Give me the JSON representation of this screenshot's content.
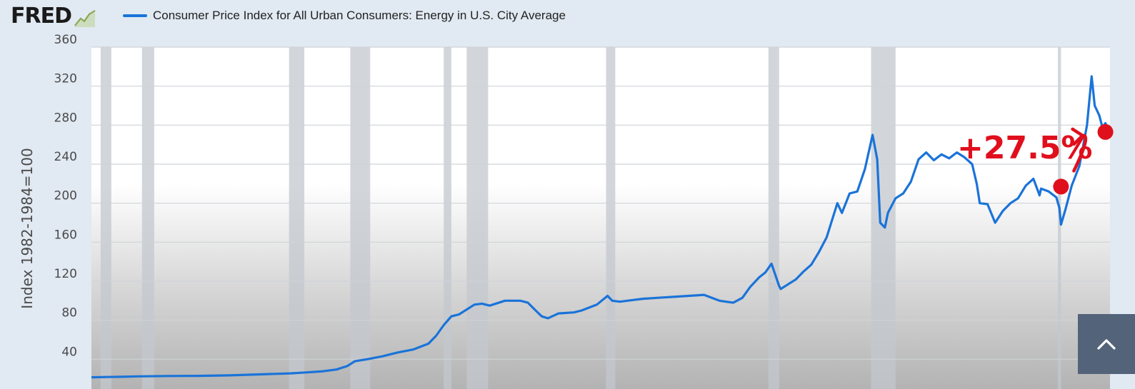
{
  "header": {
    "logo_text": "FRED",
    "legend_label": "Consumer Price Index for All Urban Consumers: Energy in U.S. City Average",
    "line_color": "#1a73d9"
  },
  "annotation": {
    "label": "+27.5%",
    "color": "#e00f1c",
    "start": {
      "x": 2020.3,
      "y": 217
    },
    "end": {
      "x": 2023.2,
      "y": 273
    }
  },
  "scroll_button": {
    "icon": "chevron-up-icon",
    "color": "#53637a"
  },
  "chart_data": {
    "type": "line",
    "ylabel": "Index 1982-1984=100",
    "ylim": [
      0,
      360
    ],
    "y_ticks": [
      40,
      80,
      120,
      160,
      200,
      240,
      280,
      320,
      360
    ],
    "xlim": [
      1957,
      2023.5
    ],
    "grid": true,
    "recessions": [
      [
        1957.6,
        1958.3
      ],
      [
        1960.3,
        1961.1
      ],
      [
        1969.9,
        1970.9
      ],
      [
        1973.9,
        1975.2
      ],
      [
        1980.0,
        1980.5
      ],
      [
        1981.5,
        1982.9
      ],
      [
        1990.6,
        1991.2
      ],
      [
        2001.2,
        2001.9
      ],
      [
        2007.9,
        2009.5
      ],
      [
        2020.1,
        2020.3
      ]
    ],
    "series": [
      {
        "name": "Consumer Price Index for All Urban Consumers: Energy in U.S. City Average",
        "x": [
          1957,
          1958,
          1959,
          1960,
          1962,
          1964,
          1966,
          1968,
          1970,
          1971,
          1972,
          1973,
          1973.7,
          1974.2,
          1975,
          1976,
          1977,
          1978,
          1979,
          1979.5,
          1980,
          1980.5,
          1981,
          1981.6,
          1982,
          1982.5,
          1983,
          1984,
          1985,
          1985.5,
          1986,
          1986.4,
          1986.8,
          1987.5,
          1988.5,
          1989,
          1990,
          1990.7,
          1991,
          1991.5,
          1992,
          1993,
          1994,
          1995,
          1996,
          1997,
          1998,
          1998.9,
          1999.5,
          2000,
          2000.6,
          2001,
          2001.4,
          2001.9,
          2002,
          2003,
          2003.5,
          2004,
          2004.5,
          2005,
          2005.7,
          2006,
          2006.5,
          2007,
          2007.5,
          2008,
          2008.3,
          2008.5,
          2008.8,
          2009,
          2009.5,
          2010,
          2010.5,
          2011,
          2011.5,
          2012,
          2012.5,
          2013,
          2013.5,
          2014,
          2014.5,
          2014.8,
          2015,
          2015.5,
          2016,
          2016.5,
          2017,
          2017.5,
          2018,
          2018.5,
          2018.9,
          2019,
          2019.5,
          2020,
          2020.2,
          2020.3,
          2020.6,
          2021,
          2021.5,
          2022,
          2022.3,
          2022.5,
          2022.8,
          2023,
          2023.2,
          2023.5
        ],
        "y": [
          21.5,
          21.8,
          22,
          22.5,
          22.8,
          23,
          23.5,
          24.5,
          25.5,
          26.5,
          27.5,
          29.5,
          33,
          38,
          40,
          43,
          47,
          50,
          56,
          64,
          75,
          84,
          86,
          92,
          96,
          97,
          95,
          100,
          100,
          98,
          90,
          84,
          82,
          87,
          88,
          90,
          96,
          105,
          100,
          99,
          100,
          102,
          103,
          104,
          105,
          106,
          100,
          98,
          103,
          114,
          124,
          129,
          138,
          115,
          112,
          122,
          130,
          137,
          150,
          165,
          200,
          190,
          210,
          212,
          235,
          270,
          245,
          180,
          175,
          190,
          205,
          210,
          222,
          245,
          252,
          244,
          250,
          246,
          252,
          247,
          240,
          220,
          200,
          199,
          180,
          192,
          200,
          205,
          218,
          225,
          208,
          215,
          212,
          206,
          195,
          178,
          194,
          218,
          238,
          280,
          330,
          300,
          290,
          278,
          282,
          273
        ]
      }
    ]
  }
}
